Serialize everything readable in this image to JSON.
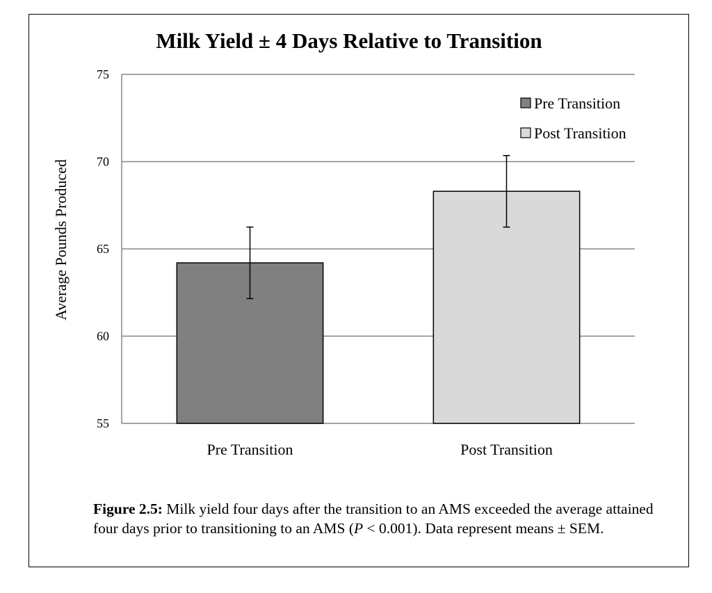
{
  "chart_data": {
    "type": "bar",
    "title": "Milk Yield ± 4 Days Relative to Transition",
    "xlabel": "",
    "ylabel": "Average Pounds Produced",
    "categories": [
      "Pre Transition",
      "Post Transition"
    ],
    "values": [
      64.2,
      68.3
    ],
    "errors": [
      2.05,
      2.05
    ],
    "ylim": [
      55,
      75
    ],
    "yticks": [
      55,
      60,
      65,
      70,
      75
    ],
    "grid": true,
    "legend_position": "top-right",
    "legend": [
      {
        "label": "Pre Transition",
        "color": "#808080"
      },
      {
        "label": "Post Transition",
        "color": "#d9d9d9"
      }
    ],
    "bar_colors": [
      "#808080",
      "#d9d9d9"
    ]
  },
  "caption": {
    "label": "Figure 2.5:",
    "text_1": " Milk yield four days after the transition to an AMS exceeded the average attained four days prior to transitioning to an AMS (",
    "p_symbol": "P",
    "text_2": " < 0.001).  Data represent means ± SEM."
  }
}
